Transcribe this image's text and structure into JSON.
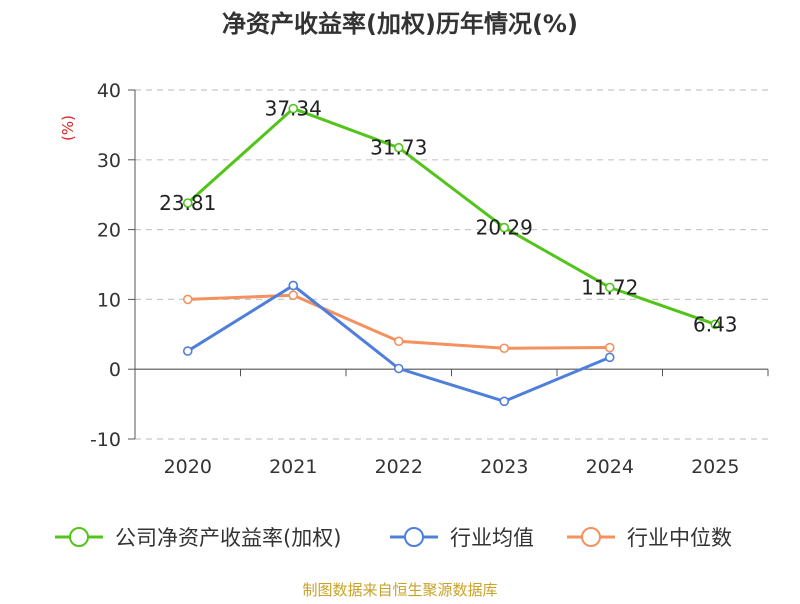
{
  "chart_data": {
    "type": "line",
    "title": "净资产收益率(加权)历年情况(%)",
    "ylabel": "(%)",
    "xlabel": "",
    "ylim": [
      -10,
      40
    ],
    "yticks": [
      "-10",
      "0",
      "10",
      "20",
      "30",
      "40"
    ],
    "categories": [
      "2020",
      "2021",
      "2022",
      "2023",
      "2024",
      "2025"
    ],
    "grid": true,
    "legend_position": "bottom",
    "series": [
      {
        "name": "公司净资产收益率(加权)",
        "color": "#52c41a",
        "values": [
          23.81,
          37.34,
          31.73,
          20.29,
          11.72,
          6.43
        ],
        "labels": [
          "23.81",
          "37.34",
          "31.73",
          "20.29",
          "11.72",
          "6.43"
        ]
      },
      {
        "name": "行业均值",
        "color": "#4e7fdb",
        "values": [
          2.6,
          12.0,
          0.1,
          -4.6,
          1.7,
          null
        ]
      },
      {
        "name": "行业中位数",
        "color": "#f4915e",
        "values": [
          10.0,
          10.6,
          4.0,
          3.0,
          3.1,
          null
        ]
      }
    ],
    "source": "制图数据来自恒生聚源数据库",
    "source_color": "#c9a227",
    "ylabel_color": "#e02020"
  }
}
